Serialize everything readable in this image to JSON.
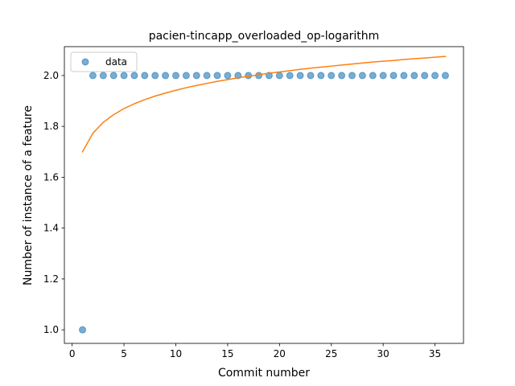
{
  "chart_data": {
    "type": "scatter",
    "title": "pacien-tincapp_overloaded_op-logarithm",
    "xlabel": "Commit number",
    "ylabel": "Number of instance of a feature",
    "xlim": [
      -0.75,
      37.75
    ],
    "ylim": [
      0.9467,
      2.1135
    ],
    "xticks": [
      0,
      5,
      10,
      15,
      20,
      25,
      30,
      35
    ],
    "xtick_labels": [
      "0",
      "5",
      "10",
      "15",
      "20",
      "25",
      "30",
      "35"
    ],
    "yticks": [
      1.0,
      1.2,
      1.4,
      1.6,
      1.8,
      2.0
    ],
    "ytick_labels": [
      "1.0",
      "1.2",
      "1.4",
      "1.6",
      "1.8",
      "2.0"
    ],
    "grid": false,
    "legend_position": "top-left",
    "series": [
      {
        "name": "data",
        "kind": "scatter",
        "color": "#1f77b4",
        "x": [
          1,
          2,
          3,
          4,
          5,
          6,
          7,
          8,
          9,
          10,
          11,
          12,
          13,
          14,
          15,
          16,
          17,
          18,
          19,
          20,
          21,
          22,
          23,
          24,
          25,
          26,
          27,
          28,
          29,
          30,
          31,
          32,
          33,
          34,
          35,
          36
        ],
        "y": [
          1,
          2,
          2,
          2,
          2,
          2,
          2,
          2,
          2,
          2,
          2,
          2,
          2,
          2,
          2,
          2,
          2,
          2,
          2,
          2,
          2,
          2,
          2,
          2,
          2,
          2,
          2,
          2,
          2,
          2,
          2,
          2,
          2,
          2,
          2,
          2
        ]
      },
      {
        "kind": "line",
        "color": "#ff7f0e",
        "x": [
          1,
          2,
          3,
          4,
          5,
          6,
          7,
          8,
          9,
          10,
          11,
          12,
          13,
          14,
          15,
          16,
          17,
          18,
          19,
          20,
          21,
          22,
          23,
          24,
          25,
          26,
          27,
          28,
          29,
          30,
          31,
          32,
          33,
          34,
          35,
          36
        ],
        "y": [
          1.7,
          1.773,
          1.816,
          1.846,
          1.87,
          1.889,
          1.905,
          1.919,
          1.931,
          1.942,
          1.952,
          1.961,
          1.969,
          1.977,
          1.984,
          1.991,
          1.997,
          2.003,
          2.009,
          2.014,
          2.019,
          2.024,
          2.029,
          2.033,
          2.037,
          2.041,
          2.045,
          2.049,
          2.053,
          2.056,
          2.059,
          2.063,
          2.066,
          2.069,
          2.072,
          2.075
        ]
      }
    ]
  }
}
